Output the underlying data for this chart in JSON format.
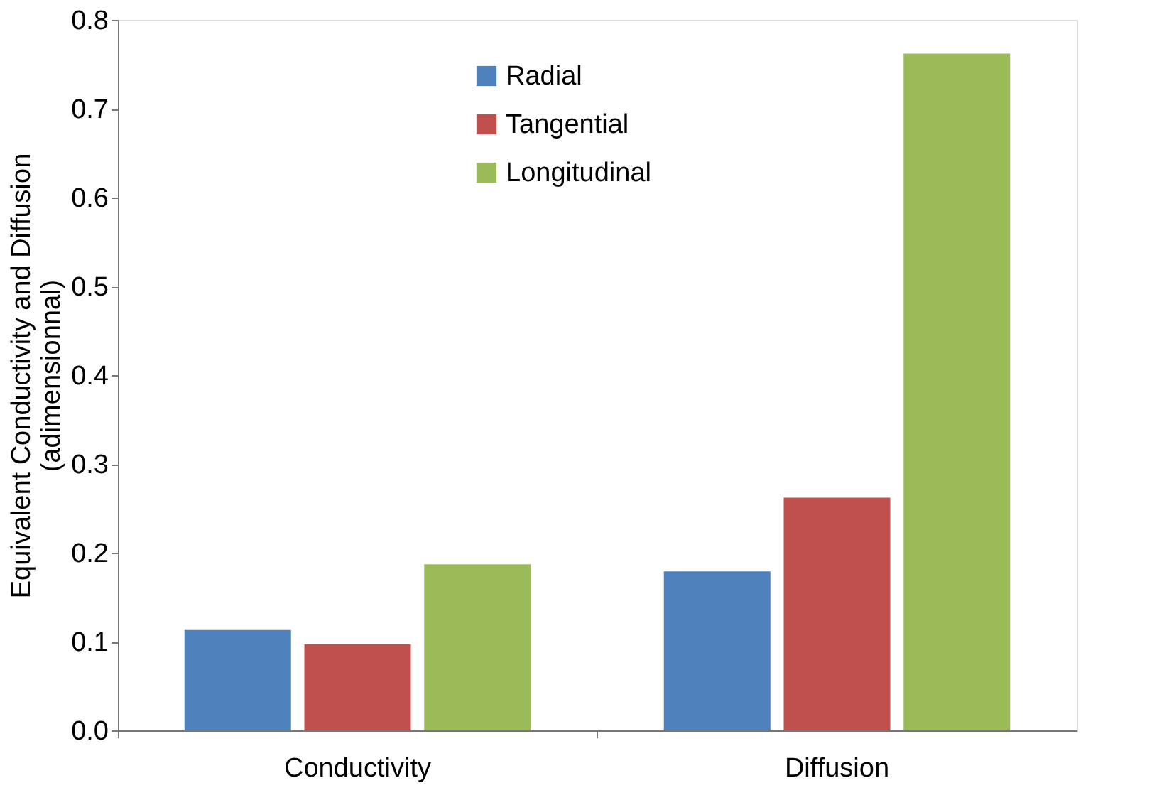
{
  "chart_data": {
    "type": "bar",
    "ylabel": "Equivalent Conductivity and Diffusion\n(adimensionnal)",
    "categories": [
      "Conductivity",
      "Diffusion"
    ],
    "series": [
      {
        "name": "Radial",
        "color": "#4f81bd",
        "values": [
          0.113,
          0.179
        ]
      },
      {
        "name": "Tangential",
        "color": "#c0504d",
        "values": [
          0.097,
          0.262
        ]
      },
      {
        "name": "Longitudinal",
        "color": "#9bbb59",
        "values": [
          0.187,
          0.762
        ]
      }
    ],
    "ylim": [
      0,
      0.8
    ],
    "yticks": [
      {
        "value": 0,
        "label": "0.0"
      },
      0.1,
      0.2,
      0.3,
      0.4,
      0.5,
      0.6,
      0.7,
      0.8
    ],
    "grid": false,
    "legend": "top"
  }
}
